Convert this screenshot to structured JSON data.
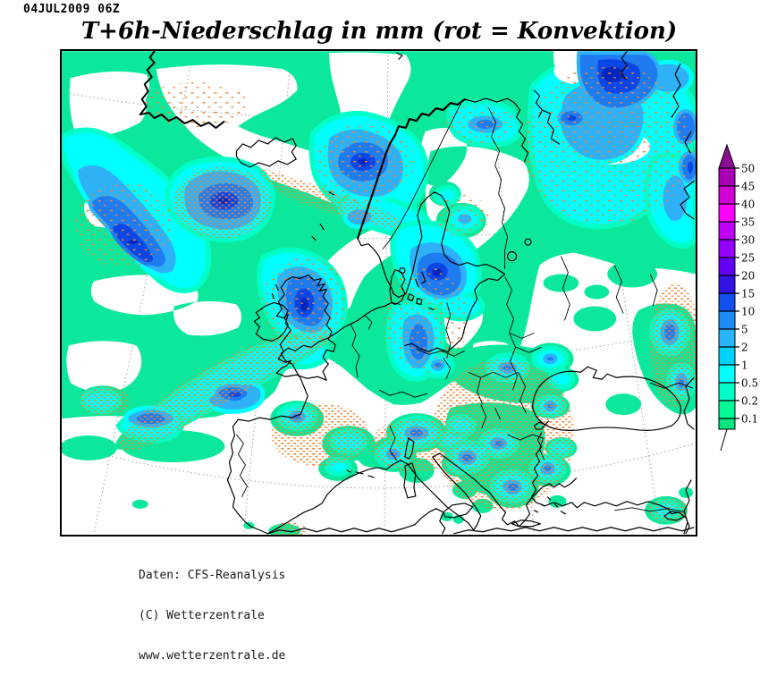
{
  "header": {
    "datetime": "04JUL2009 06Z",
    "title": "T+6h-Niederschlag in mm (rot = Konvektion)"
  },
  "legend": {
    "unit": "mm",
    "labels": [
      "50",
      "45",
      "40",
      "35",
      "30",
      "25",
      "20",
      "15",
      "10",
      "5",
      "2",
      "1",
      "0.5",
      "0.2",
      "0.1"
    ],
    "cell_colors": [
      "#AA00B4",
      "#D200D2",
      "#FF00FF",
      "#BE00FA",
      "#9600FF",
      "#6400F5",
      "#3214E6",
      "#1450F0",
      "#1E8CF5",
      "#28B4FA",
      "#00D2FF",
      "#00FFFF",
      "#00FFC8",
      "#00FA96"
    ],
    "arrow_color": "#8A0D94",
    "stub_color": "#00E67D"
  },
  "footer": {
    "lines": [
      "Daten: CFS-Reanalysis",
      "(C) Wetterzentrale",
      "www.wetterzentrale.de"
    ]
  },
  "map": {
    "palette": {
      "trace_green": "#0BE89B",
      "aqua_fringe": "#00FFC8",
      "cyan": "#00FFFF",
      "sky_blue": "#2FB1F7",
      "blue": "#1E7CF0",
      "deep_blue": "#0B46E6",
      "core_blue": "#0326C0",
      "convection_stipple": "#F08433",
      "coastline": "#000000",
      "gridline": "#9C9C9C",
      "no_precip": "#FFFFFF"
    }
  }
}
